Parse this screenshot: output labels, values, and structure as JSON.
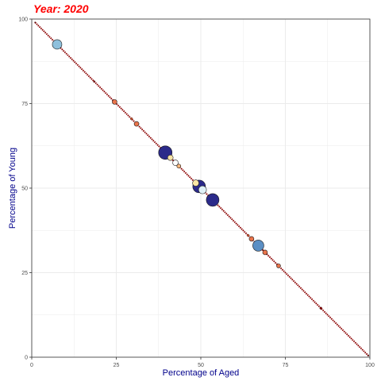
{
  "chart_data": {
    "type": "scatter",
    "title": "Year: 2020",
    "xlabel": "Percentage of Aged",
    "ylabel": "Percentage of Young",
    "xlim": [
      0,
      100
    ],
    "ylim": [
      0,
      100
    ],
    "xticks": [
      "0",
      "25",
      "50",
      "75",
      "100"
    ],
    "yticks": [
      "0",
      "25",
      "50",
      "75",
      "100"
    ],
    "grid": true,
    "colors": {
      "title": "#ff0000",
      "axis_title": "#00008b",
      "tick": "#4d4d4d",
      "grid": "#ebebeb",
      "line": "#8b0000",
      "point_stroke": "#1a1a1a"
    },
    "points": [
      {
        "x": 1,
        "y": 99,
        "size": 0.8,
        "color": "#8b0000"
      },
      {
        "x": 7.5,
        "y": 92.5,
        "size": 6,
        "color": "#8ec0dc"
      },
      {
        "x": 18.5,
        "y": 81.5,
        "size": 1.2,
        "color": "#8b0000"
      },
      {
        "x": 24.5,
        "y": 75.5,
        "size": 3,
        "color": "#e9744b"
      },
      {
        "x": 29.5,
        "y": 70.5,
        "size": 1.5,
        "color": "#c9502f"
      },
      {
        "x": 31,
        "y": 69,
        "size": 3,
        "color": "#e9744b"
      },
      {
        "x": 39.5,
        "y": 60.5,
        "size": 8.5,
        "color": "#2b2a8a"
      },
      {
        "x": 41,
        "y": 59,
        "size": 3.5,
        "color": "#f7e3a7"
      },
      {
        "x": 42.5,
        "y": 57.5,
        "size": 3.5,
        "color": "#ffffff"
      },
      {
        "x": 43.5,
        "y": 56.5,
        "size": 2.5,
        "color": "#fdb97d"
      },
      {
        "x": 48.5,
        "y": 51.5,
        "size": 4,
        "color": "#fbe6a5"
      },
      {
        "x": 49.5,
        "y": 50.5,
        "size": 8,
        "color": "#2b2a8a"
      },
      {
        "x": 50.5,
        "y": 49.5,
        "size": 5,
        "color": "#e0f1f7"
      },
      {
        "x": 53.5,
        "y": 46.5,
        "size": 8,
        "color": "#2b2a8a"
      },
      {
        "x": 64,
        "y": 36,
        "size": 1.5,
        "color": "#c9502f"
      },
      {
        "x": 65,
        "y": 35,
        "size": 3,
        "color": "#e9744b"
      },
      {
        "x": 67,
        "y": 33,
        "size": 7,
        "color": "#5b8fc4"
      },
      {
        "x": 69,
        "y": 31,
        "size": 3,
        "color": "#e9744b"
      },
      {
        "x": 73,
        "y": 27,
        "size": 2.5,
        "color": "#e9744b"
      },
      {
        "x": 85.5,
        "y": 14.5,
        "size": 1.5,
        "color": "#8b0000"
      },
      {
        "x": 99.5,
        "y": 0.5,
        "size": 1,
        "color": "#8b0000"
      }
    ]
  }
}
